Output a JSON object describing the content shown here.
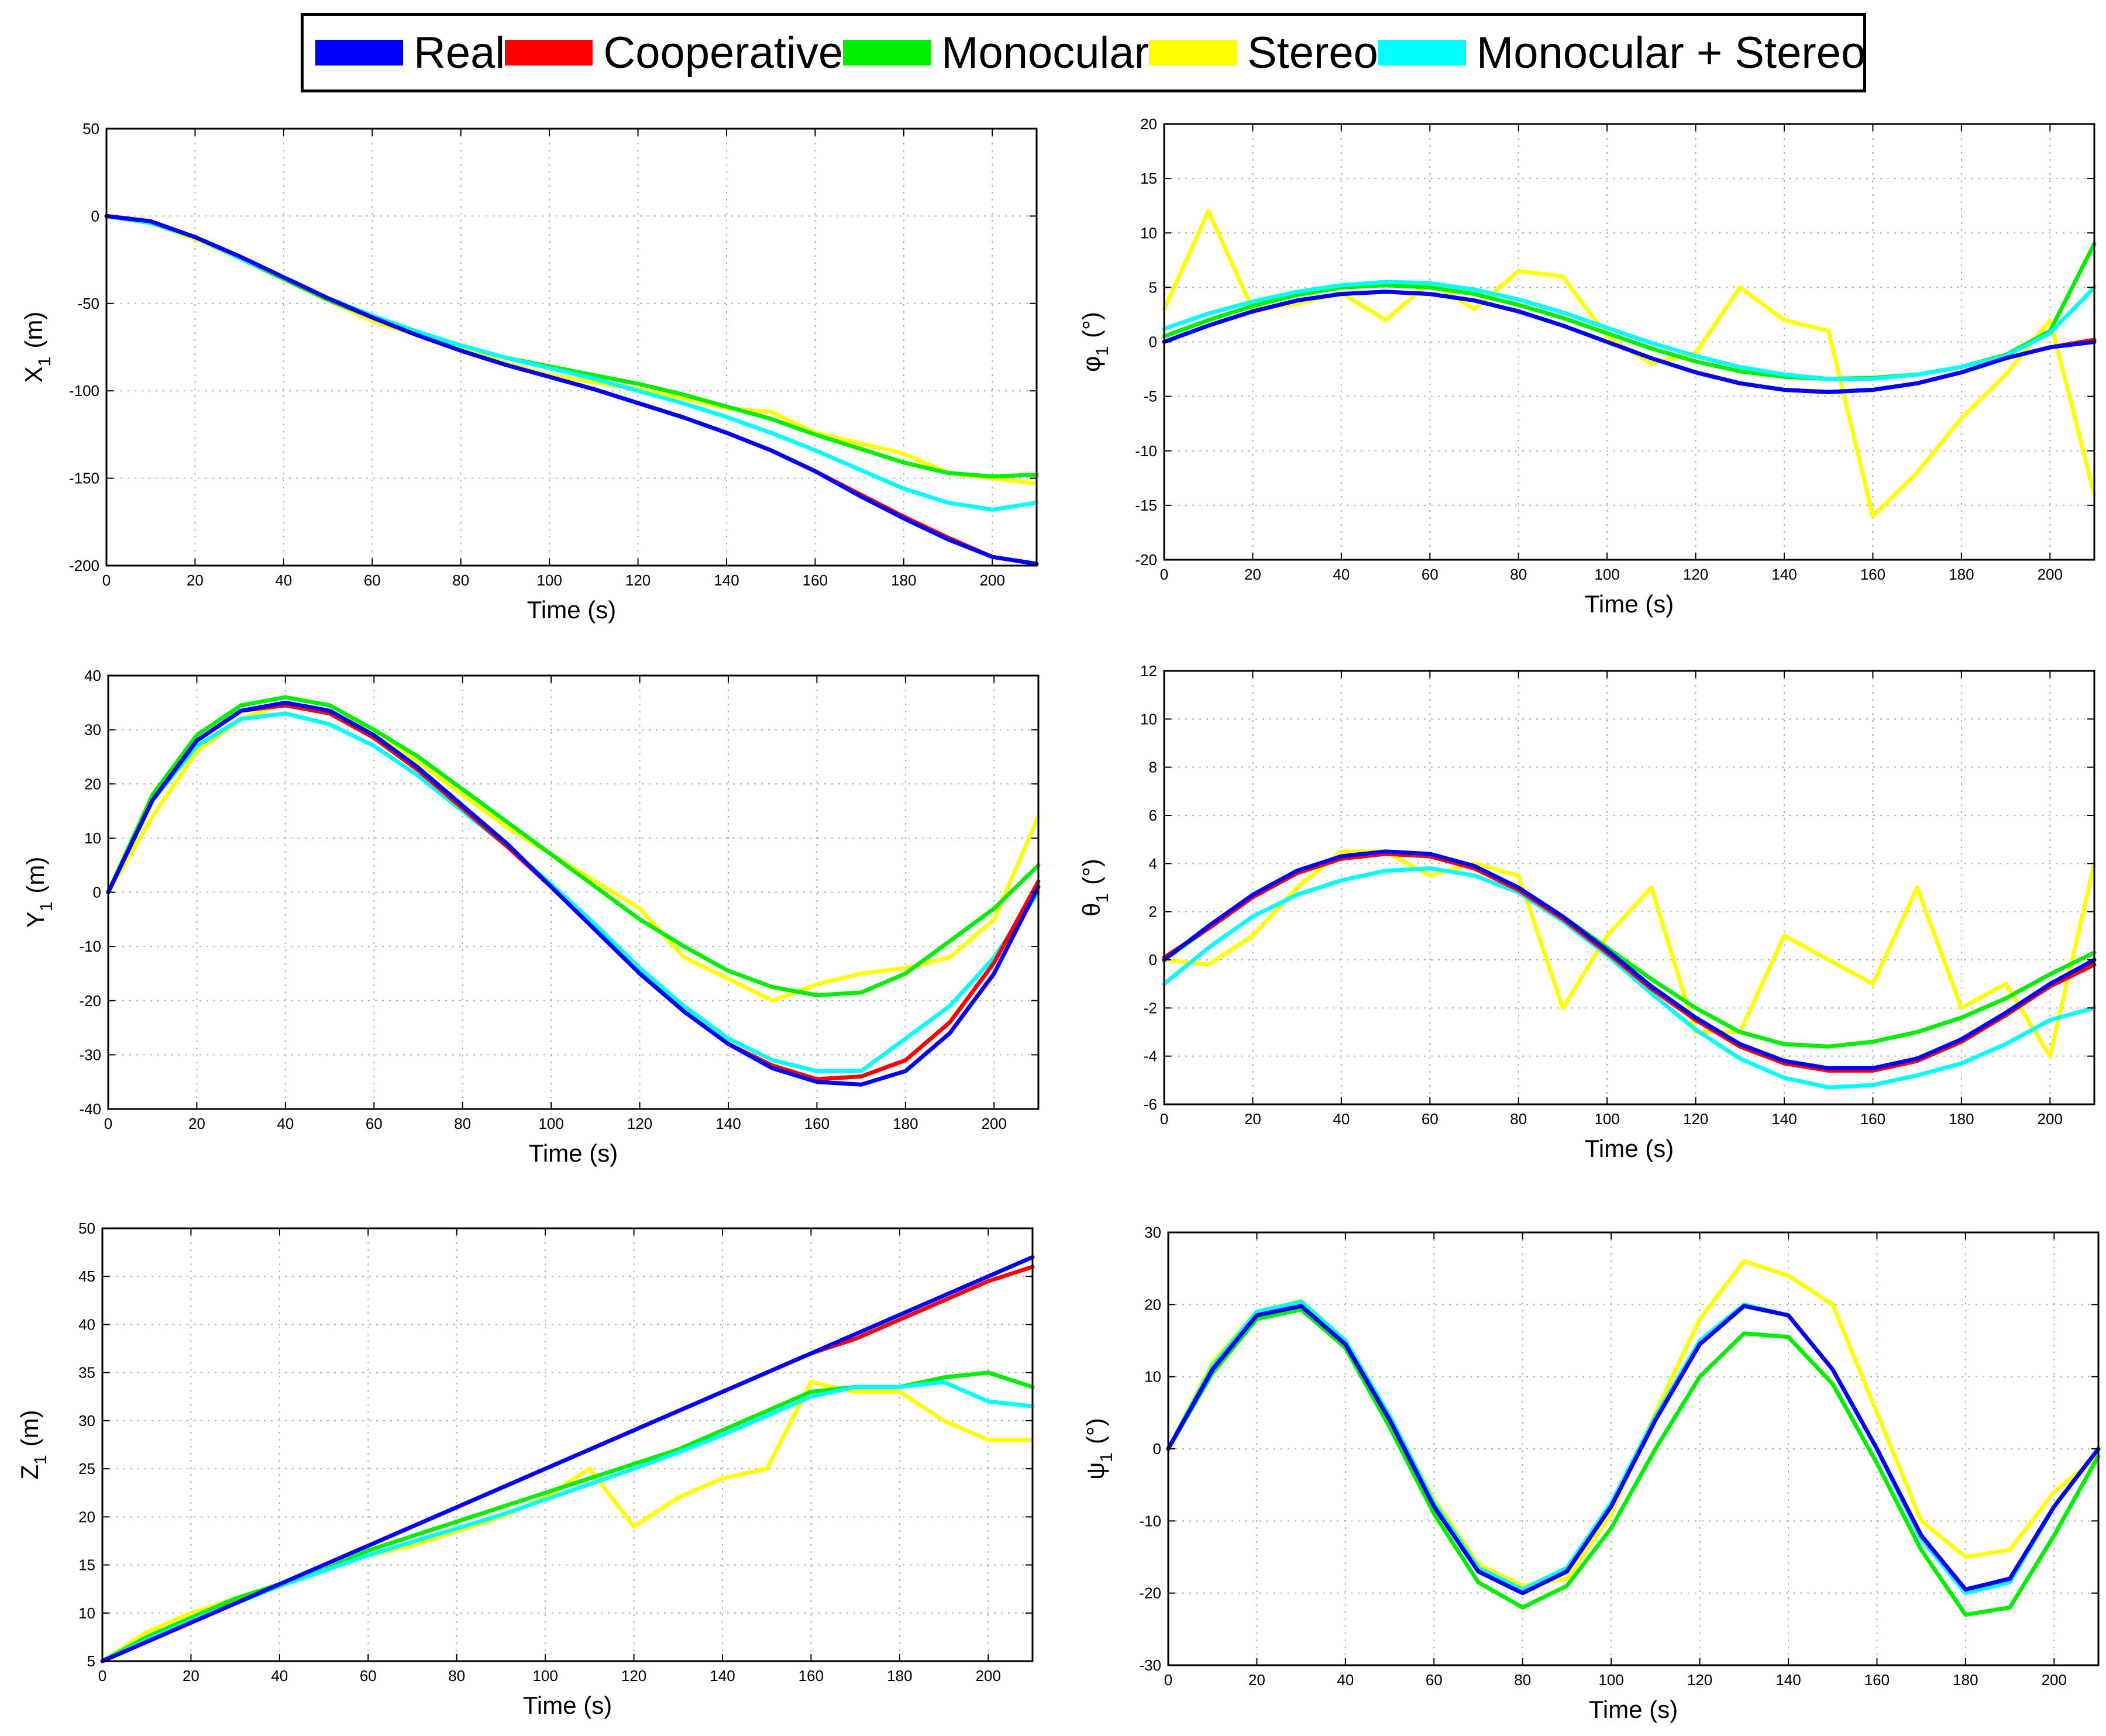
{
  "legend": {
    "items": [
      {
        "label": "Real",
        "color": "#0000ff"
      },
      {
        "label": "Cooperative",
        "color": "#ff0000"
      },
      {
        "label": "Monocular",
        "color": "#00ee00"
      },
      {
        "label": "Stereo",
        "color": "#ffff00"
      },
      {
        "label": "Monocular + Stereo",
        "color": "#00ffff"
      }
    ]
  },
  "chart_data": [
    {
      "id": "x1",
      "type": "line",
      "xlabel": "Time (s)",
      "ylabel": "X",
      "ylabel_sub": "1",
      "ylabel_unit": "(m)",
      "xlim": [
        0,
        210
      ],
      "ylim": [
        -200,
        50
      ],
      "grid": true,
      "xticks": [
        0,
        20,
        40,
        60,
        80,
        100,
        120,
        140,
        160,
        180,
        200
      ],
      "yticks": [
        -200,
        -150,
        -100,
        -50,
        0,
        50
      ],
      "x": [
        0,
        10,
        20,
        30,
        40,
        50,
        60,
        70,
        80,
        90,
        100,
        110,
        120,
        130,
        140,
        150,
        160,
        170,
        180,
        190,
        200,
        210
      ],
      "series": [
        {
          "name": "Real",
          "values": [
            0,
            -3,
            -12,
            -23,
            -35,
            -47,
            -58,
            -68,
            -77,
            -85,
            -92,
            -99,
            -107,
            -115,
            -124,
            -134,
            -146,
            -160,
            -173,
            -185,
            -195,
            -199
          ]
        },
        {
          "name": "Cooperative",
          "values": [
            0,
            -3,
            -12,
            -23,
            -35,
            -47,
            -58,
            -68,
            -77,
            -85,
            -92,
            -99,
            -107,
            -115,
            -124,
            -134,
            -146,
            -159,
            -172,
            -184,
            -195,
            -199
          ]
        },
        {
          "name": "Monocular",
          "values": [
            0,
            -4,
            -12,
            -24,
            -36,
            -48,
            -58,
            -67,
            -74,
            -81,
            -86,
            -91,
            -96,
            -102,
            -109,
            -116,
            -125,
            -133,
            -141,
            -147,
            -149,
            -148
          ]
        },
        {
          "name": "Stereo",
          "values": [
            0,
            -4,
            -13,
            -24,
            -36,
            -48,
            -60,
            -68,
            -75,
            -84,
            -91,
            -95,
            -99,
            -104,
            -110,
            -112,
            -124,
            -130,
            -136,
            -147,
            -150,
            -153
          ]
        },
        {
          "name": "Monocular + Stereo",
          "values": [
            0,
            -4,
            -12,
            -24,
            -35,
            -47,
            -57,
            -66,
            -74,
            -81,
            -87,
            -93,
            -100,
            -107,
            -115,
            -124,
            -134,
            -145,
            -156,
            -164,
            -168,
            -164
          ]
        }
      ]
    },
    {
      "id": "phi1",
      "type": "line",
      "xlabel": "Time (s)",
      "ylabel": "φ",
      "ylabel_sub": "1",
      "ylabel_unit": "(°)",
      "xlim": [
        0,
        210
      ],
      "ylim": [
        -20,
        20
      ],
      "grid": true,
      "xticks": [
        0,
        20,
        40,
        60,
        80,
        100,
        120,
        140,
        160,
        180,
        200
      ],
      "yticks": [
        -20,
        -15,
        -10,
        -5,
        0,
        5,
        10,
        15,
        20
      ],
      "x": [
        0,
        10,
        20,
        30,
        40,
        50,
        60,
        70,
        80,
        90,
        100,
        110,
        120,
        130,
        140,
        150,
        160,
        170,
        180,
        190,
        200,
        210
      ],
      "series": [
        {
          "name": "Real",
          "values": [
            0,
            1.5,
            2.8,
            3.8,
            4.4,
            4.6,
            4.4,
            3.8,
            2.8,
            1.5,
            0,
            -1.5,
            -2.8,
            -3.8,
            -4.4,
            -4.6,
            -4.4,
            -3.8,
            -2.8,
            -1.5,
            -0.5,
            0
          ]
        },
        {
          "name": "Cooperative",
          "values": [
            0,
            1.5,
            2.8,
            3.8,
            4.4,
            4.6,
            4.4,
            3.8,
            2.8,
            1.5,
            0,
            -1.5,
            -2.8,
            -3.8,
            -4.4,
            -4.6,
            -4.4,
            -3.8,
            -2.8,
            -1.5,
            -0.5,
            0.2
          ]
        },
        {
          "name": "Monocular",
          "values": [
            0.5,
            2,
            3.3,
            4.3,
            5,
            5.2,
            5,
            4.4,
            3.4,
            2.2,
            0.8,
            -0.6,
            -1.8,
            -2.7,
            -3.2,
            -3.4,
            -3.3,
            -3,
            -2.3,
            -1.2,
            1,
            9
          ]
        },
        {
          "name": "Stereo",
          "values": [
            3,
            12,
            3,
            3.5,
            4.5,
            2,
            5.5,
            3,
            6.5,
            6,
            0.5,
            -2,
            -1,
            5,
            2,
            1,
            -16,
            -12,
            -7,
            -3,
            2,
            -14
          ]
        },
        {
          "name": "Monocular + Stereo",
          "values": [
            1.2,
            2.6,
            3.7,
            4.6,
            5.2,
            5.5,
            5.4,
            4.8,
            3.9,
            2.7,
            1.3,
            -0.1,
            -1.3,
            -2.3,
            -3.0,
            -3.4,
            -3.4,
            -3.0,
            -2.3,
            -1.3,
            0.8,
            5
          ]
        }
      ]
    },
    {
      "id": "y1",
      "type": "line",
      "xlabel": "Time (s)",
      "ylabel": "Y",
      "ylabel_sub": "1",
      "ylabel_unit": "(m)",
      "xlim": [
        0,
        210
      ],
      "ylim": [
        -40,
        40
      ],
      "grid": true,
      "xticks": [
        0,
        20,
        40,
        60,
        80,
        100,
        120,
        140,
        160,
        180,
        200
      ],
      "yticks": [
        -40,
        -30,
        -20,
        -10,
        0,
        10,
        20,
        30,
        40
      ],
      "x": [
        0,
        10,
        20,
        30,
        40,
        50,
        60,
        70,
        80,
        90,
        100,
        110,
        120,
        130,
        140,
        150,
        160,
        170,
        180,
        190,
        200,
        210
      ],
      "series": [
        {
          "name": "Real",
          "values": [
            0,
            17,
            28,
            33.5,
            35,
            33.5,
            29,
            23,
            16,
            9,
            1,
            -7,
            -15,
            -22,
            -28,
            -32.5,
            -35,
            -35.5,
            -33,
            -26,
            -15,
            1
          ]
        },
        {
          "name": "Cooperative",
          "values": [
            0,
            17,
            28,
            33.5,
            34.5,
            33,
            28.5,
            22.5,
            15.5,
            8.5,
            1,
            -7,
            -15,
            -22,
            -28,
            -32,
            -34.5,
            -34,
            -31,
            -24,
            -13,
            2
          ]
        },
        {
          "name": "Monocular",
          "values": [
            0,
            18,
            29,
            34.5,
            36,
            34.5,
            30,
            25,
            19,
            13,
            7,
            1,
            -5,
            -10,
            -14.5,
            -17.5,
            -19,
            -18.5,
            -15,
            -9,
            -3,
            5
          ]
        },
        {
          "name": "Stereo",
          "values": [
            0,
            14,
            26,
            32,
            35,
            33,
            30,
            24,
            18,
            12,
            7,
            2,
            -3,
            -12,
            -16,
            -20,
            -17,
            -15,
            -14,
            -12,
            -5,
            14
          ]
        },
        {
          "name": "Monocular + Stereo",
          "values": [
            0,
            17,
            27,
            32,
            33,
            31,
            27,
            21.5,
            15,
            8.5,
            1.5,
            -6,
            -14,
            -21,
            -27,
            -31,
            -33,
            -33,
            -27,
            -21,
            -12,
            0
          ]
        }
      ]
    },
    {
      "id": "theta1",
      "type": "line",
      "xlabel": "Time (s)",
      "ylabel": "θ",
      "ylabel_sub": "1",
      "ylabel_unit": "(°)",
      "xlim": [
        0,
        210
      ],
      "ylim": [
        -6,
        12
      ],
      "grid": true,
      "xticks": [
        0,
        20,
        40,
        60,
        80,
        100,
        120,
        140,
        160,
        180,
        200
      ],
      "yticks": [
        -6,
        -4,
        -2,
        0,
        2,
        4,
        6,
        8,
        10,
        12
      ],
      "x": [
        0,
        10,
        20,
        30,
        40,
        50,
        60,
        70,
        80,
        90,
        100,
        110,
        120,
        130,
        140,
        150,
        160,
        170,
        180,
        190,
        200,
        210
      ],
      "series": [
        {
          "name": "Real",
          "values": [
            0,
            1.4,
            2.7,
            3.7,
            4.3,
            4.5,
            4.4,
            3.9,
            3.0,
            1.8,
            0.4,
            -1.1,
            -2.4,
            -3.5,
            -4.2,
            -4.5,
            -4.5,
            -4.1,
            -3.3,
            -2.2,
            -1.0,
            0
          ]
        },
        {
          "name": "Cooperative",
          "values": [
            0.1,
            1.3,
            2.6,
            3.6,
            4.2,
            4.4,
            4.3,
            3.8,
            2.9,
            1.7,
            0.3,
            -1.2,
            -2.5,
            -3.6,
            -4.3,
            -4.6,
            -4.6,
            -4.2,
            -3.4,
            -2.3,
            -1.1,
            -0.2
          ]
        },
        {
          "name": "Monocular",
          "values": [
            0,
            1.3,
            2.6,
            3.6,
            4.3,
            4.5,
            4.3,
            3.8,
            3.0,
            1.8,
            0.5,
            -0.8,
            -2.0,
            -3.0,
            -3.5,
            -3.6,
            -3.4,
            -3.0,
            -2.4,
            -1.6,
            -0.6,
            0.3
          ]
        },
        {
          "name": "Stereo",
          "values": [
            0,
            -0.2,
            1,
            3,
            4.5,
            4.5,
            3.5,
            4,
            3.5,
            -2,
            1,
            3,
            -3,
            -3,
            1,
            0,
            -1,
            3,
            -2,
            -1,
            -4,
            4
          ]
        },
        {
          "name": "Monocular + Stereo",
          "values": [
            -1,
            0.5,
            1.8,
            2.7,
            3.3,
            3.7,
            3.8,
            3.5,
            2.8,
            1.6,
            0.2,
            -1.4,
            -2.9,
            -4.1,
            -4.9,
            -5.3,
            -5.2,
            -4.8,
            -4.3,
            -3.5,
            -2.5,
            -2
          ]
        }
      ]
    },
    {
      "id": "z1",
      "type": "line",
      "xlabel": "Time (s)",
      "ylabel": "Z",
      "ylabel_sub": "1",
      "ylabel_unit": "(m)",
      "xlim": [
        0,
        210
      ],
      "ylim": [
        5,
        50
      ],
      "grid": true,
      "xticks": [
        0,
        20,
        40,
        60,
        80,
        100,
        120,
        140,
        160,
        180,
        200
      ],
      "yticks": [
        5,
        10,
        15,
        20,
        25,
        30,
        35,
        40,
        45,
        50
      ],
      "x": [
        0,
        10,
        20,
        30,
        40,
        50,
        60,
        70,
        80,
        90,
        100,
        110,
        120,
        130,
        140,
        150,
        160,
        170,
        180,
        190,
        200,
        210
      ],
      "series": [
        {
          "name": "Real",
          "values": [
            5,
            7,
            9,
            11,
            13,
            15,
            17,
            19,
            21,
            23,
            25,
            27,
            29,
            31,
            33,
            35,
            37,
            39,
            41,
            43,
            45,
            47
          ]
        },
        {
          "name": "Cooperative",
          "values": [
            5,
            7,
            9,
            11,
            13,
            15,
            17,
            19,
            21,
            23,
            25,
            27,
            29,
            31,
            33,
            35,
            37,
            38.5,
            40.5,
            42.5,
            44.5,
            46
          ]
        },
        {
          "name": "Monocular",
          "values": [
            5,
            7.5,
            9.5,
            11.5,
            13,
            14.5,
            16.5,
            18,
            19.5,
            21,
            22.5,
            24,
            25.5,
            27,
            29,
            31,
            33,
            33.5,
            33.5,
            34.5,
            35,
            33.5
          ]
        },
        {
          "name": "Stereo",
          "values": [
            5,
            8,
            10,
            11.5,
            13,
            14.5,
            16,
            17,
            18.5,
            20,
            22,
            25,
            19,
            22,
            24,
            25,
            34,
            33,
            33,
            30,
            28,
            28
          ]
        },
        {
          "name": "Monocular + Stereo",
          "values": [
            5,
            7.2,
            9.2,
            11,
            12.8,
            14.4,
            16,
            17.4,
            18.8,
            20.2,
            21.8,
            23.4,
            25,
            26.7,
            28.5,
            30.5,
            32.5,
            33.5,
            33.5,
            34,
            32,
            31.5
          ]
        }
      ]
    },
    {
      "id": "psi1",
      "type": "line",
      "xlabel": "Time (s)",
      "ylabel": "ψ",
      "ylabel_sub": "1",
      "ylabel_unit": "(°)",
      "xlim": [
        0,
        210
      ],
      "ylim": [
        -30,
        30
      ],
      "grid": true,
      "xticks": [
        0,
        20,
        40,
        60,
        80,
        100,
        120,
        140,
        160,
        180,
        200
      ],
      "yticks": [
        -30,
        -20,
        -10,
        0,
        10,
        20,
        30
      ],
      "x": [
        0,
        10,
        20,
        30,
        40,
        50,
        60,
        70,
        80,
        90,
        100,
        110,
        120,
        130,
        140,
        150,
        160,
        170,
        180,
        190,
        200,
        210
      ],
      "series": [
        {
          "name": "Real",
          "values": [
            0,
            11,
            18.5,
            19.8,
            14.5,
            4,
            -8,
            -17,
            -20,
            -17,
            -8,
            4,
            14.5,
            19.8,
            18.5,
            11,
            0,
            -12,
            -19.5,
            -18,
            -8,
            0
          ]
        },
        {
          "name": "Cooperative",
          "values": [
            0,
            11,
            18.5,
            19.8,
            14.5,
            4,
            -8,
            -17,
            -20,
            -17,
            -8,
            4,
            14.5,
            19.8,
            18.5,
            11,
            0,
            -12,
            -19.5,
            -18,
            -8,
            0
          ]
        },
        {
          "name": "Monocular",
          "values": [
            0,
            10.5,
            18,
            19.3,
            14,
            3,
            -9,
            -18.5,
            -22,
            -19,
            -11,
            0,
            10,
            16,
            15.5,
            9,
            -2,
            -14,
            -23,
            -22,
            -12,
            -1
          ]
        },
        {
          "name": "Stereo",
          "values": [
            0,
            12,
            19,
            20.5,
            15,
            4,
            -7,
            -16,
            -19,
            -18,
            -9,
            5,
            18,
            26,
            24,
            20,
            5,
            -10,
            -15,
            -14,
            -6,
            -1
          ]
        },
        {
          "name": "Monocular + Stereo",
          "values": [
            0,
            11.5,
            19,
            20.4,
            15,
            4.5,
            -7.5,
            -16.5,
            -19.5,
            -16.5,
            -7.5,
            4.5,
            15,
            20,
            18.5,
            11,
            0,
            -12.5,
            -20,
            -18.5,
            -8,
            0
          ]
        }
      ]
    }
  ]
}
